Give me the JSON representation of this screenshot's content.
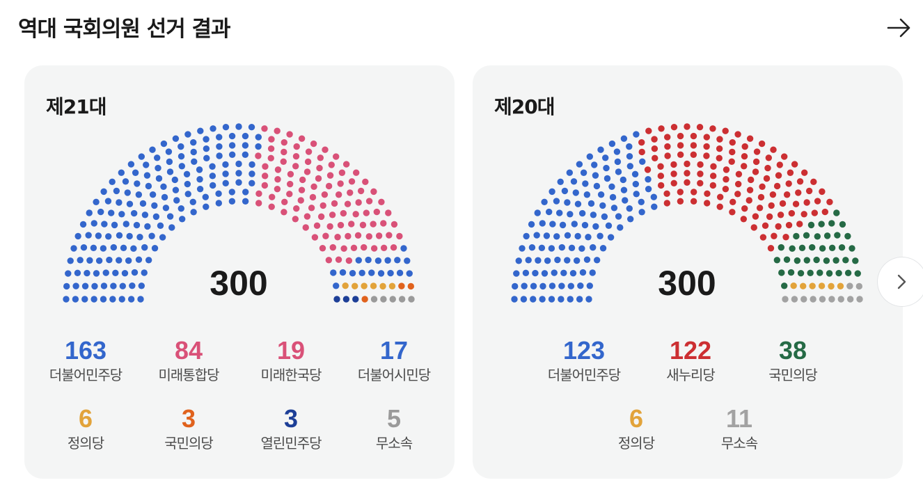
{
  "header": {
    "title": "역대 국회의원 선거 결과"
  },
  "icons": {
    "more": "arrow-right-icon",
    "next": "chevron-right-icon"
  },
  "chart_data": [
    {
      "type": "parliament",
      "title": "제21대",
      "total_label": "300",
      "parties": [
        {
          "name": "더불어민주당",
          "seats": 163,
          "color": "#3366cc"
        },
        {
          "name": "미래통합당",
          "seats": 84,
          "color": "#d95178"
        },
        {
          "name": "미래한국당",
          "seats": 19,
          "color": "#d95178"
        },
        {
          "name": "더불어시민당",
          "seats": 17,
          "color": "#3366cc"
        },
        {
          "name": "정의당",
          "seats": 6,
          "color": "#e2a33a"
        },
        {
          "name": "국민의당",
          "seats": 3,
          "color": "#e0621d"
        },
        {
          "name": "열린민주당",
          "seats": 3,
          "color": "#1d3f97"
        },
        {
          "name": "무소속",
          "seats": 5,
          "color": "#9a9a9a"
        }
      ]
    },
    {
      "type": "parliament",
      "title": "제20대",
      "total_label": "300",
      "parties": [
        {
          "name": "더불어민주당",
          "seats": 123,
          "color": "#3366cc"
        },
        {
          "name": "새누리당",
          "seats": 122,
          "color": "#cc2f32"
        },
        {
          "name": "국민의당",
          "seats": 38,
          "color": "#256a45"
        },
        {
          "name": "정의당",
          "seats": 6,
          "color": "#e2a33a"
        },
        {
          "name": "무소속",
          "seats": 11,
          "color": "#a2a2a2"
        }
      ]
    }
  ]
}
